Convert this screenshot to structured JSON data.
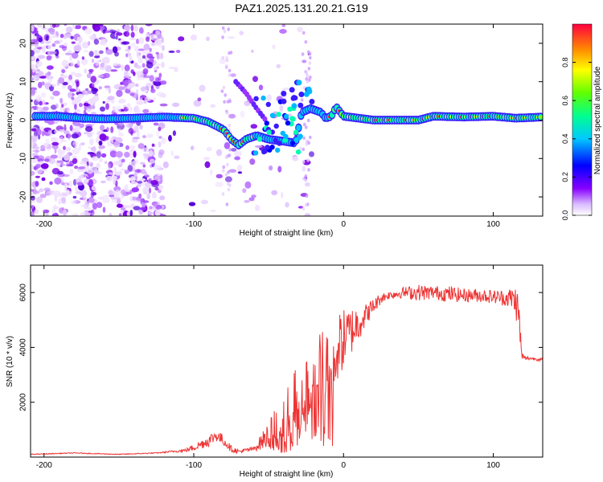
{
  "title": "PAZ1.2025.131.20.21.G19",
  "chart_data": [
    {
      "type": "heatmap",
      "xlabel": "Height of straight line (km)",
      "ylabel": "Frequency (Hz)",
      "xlim": [
        -209,
        133
      ],
      "ylim": [
        -25,
        25
      ],
      "xticks": [
        -200,
        -100,
        0,
        100
      ],
      "yticks": [
        -20,
        -10,
        0,
        10,
        20
      ],
      "colorbar": {
        "label": "Normalized spectral amplitude",
        "range": [
          0,
          1
        ],
        "ticks": [
          "0.0",
          "0.2",
          "0.4",
          "0.6",
          "0.8"
        ]
      },
      "ridge": [
        {
          "x": -205,
          "y": 1.0
        },
        {
          "x": -190,
          "y": 1.0
        },
        {
          "x": -175,
          "y": 0.5
        },
        {
          "x": -160,
          "y": 0.3
        },
        {
          "x": -140,
          "y": 0.5
        },
        {
          "x": -120,
          "y": 0.8
        },
        {
          "x": -100,
          "y": 0.5
        },
        {
          "x": -90,
          "y": -0.5
        },
        {
          "x": -80,
          "y": -2.5
        },
        {
          "x": -75,
          "y": -5.0
        },
        {
          "x": -70,
          "y": -6.5
        },
        {
          "x": -65,
          "y": -5.0
        },
        {
          "x": -58,
          "y": -4.0
        },
        {
          "x": -50,
          "y": -5.0
        },
        {
          "x": -40,
          "y": -5.5
        },
        {
          "x": -32,
          "y": -6.0
        },
        {
          "x": -28,
          "y": 2.0
        },
        {
          "x": -22,
          "y": 3.0
        },
        {
          "x": -15,
          "y": 2.0
        },
        {
          "x": -12,
          "y": 0.5
        },
        {
          "x": -8,
          "y": 1.0
        },
        {
          "x": -5,
          "y": 3.5
        },
        {
          "x": 0,
          "y": 1.0
        },
        {
          "x": 20,
          "y": 0.0
        },
        {
          "x": 40,
          "y": 0.0
        },
        {
          "x": 50,
          "y": 0.0
        },
        {
          "x": 60,
          "y": 1.0
        },
        {
          "x": 80,
          "y": 0.8
        },
        {
          "x": 100,
          "y": 1.0
        },
        {
          "x": 115,
          "y": 0.5
        },
        {
          "x": 133,
          "y": 0.8
        }
      ],
      "branch": [
        {
          "x": -72,
          "y": 10.0
        },
        {
          "x": -65,
          "y": 7.0
        },
        {
          "x": -58,
          "y": 3.0
        },
        {
          "x": -52,
          "y": 0.0
        }
      ]
    },
    {
      "type": "line",
      "xlabel": "Height of straight line (km)",
      "ylabel": "SNR (10 * v/v)",
      "xlim": [
        -209,
        133
      ],
      "ylim": [
        0,
        7000
      ],
      "xticks": [
        -200,
        -100,
        0,
        100
      ],
      "yticks": [
        2000,
        4000,
        6000
      ],
      "series": [
        {
          "name": "SNR",
          "color": "#ee3333",
          "x": [
            -209,
            -180,
            -150,
            -125,
            -105,
            -98,
            -90,
            -85,
            -80,
            -75,
            -70,
            -60,
            -50,
            -40,
            -35,
            -30,
            -25,
            -20,
            -15,
            -10,
            -5,
            0,
            5,
            10,
            15,
            20,
            25,
            30,
            40,
            50,
            60,
            70,
            80,
            90,
            100,
            108,
            112,
            115,
            117,
            119,
            121,
            125,
            133
          ],
          "y": [
            100,
            150,
            100,
            150,
            250,
            400,
            600,
            800,
            600,
            300,
            200,
            300,
            800,
            1300,
            1600,
            2000,
            2400,
            2700,
            3100,
            3500,
            3900,
            4300,
            4600,
            4900,
            5200,
            5500,
            5800,
            5900,
            6000,
            6000,
            6000,
            5950,
            5900,
            5900,
            5850,
            5800,
            5800,
            5700,
            5200,
            3700,
            3600,
            3600,
            3550
          ],
          "noise": [
            15,
            15,
            15,
            15,
            60,
            150,
            220,
            230,
            200,
            120,
            80,
            80,
            500,
            1000,
            1300,
            1500,
            1600,
            1600,
            1500,
            1400,
            1300,
            1100,
            900,
            700,
            400,
            300,
            200,
            150,
            200,
            300,
            250,
            300,
            250,
            250,
            250,
            300,
            400,
            600,
            800,
            150,
            80,
            60,
            60
          ]
        }
      ]
    }
  ]
}
